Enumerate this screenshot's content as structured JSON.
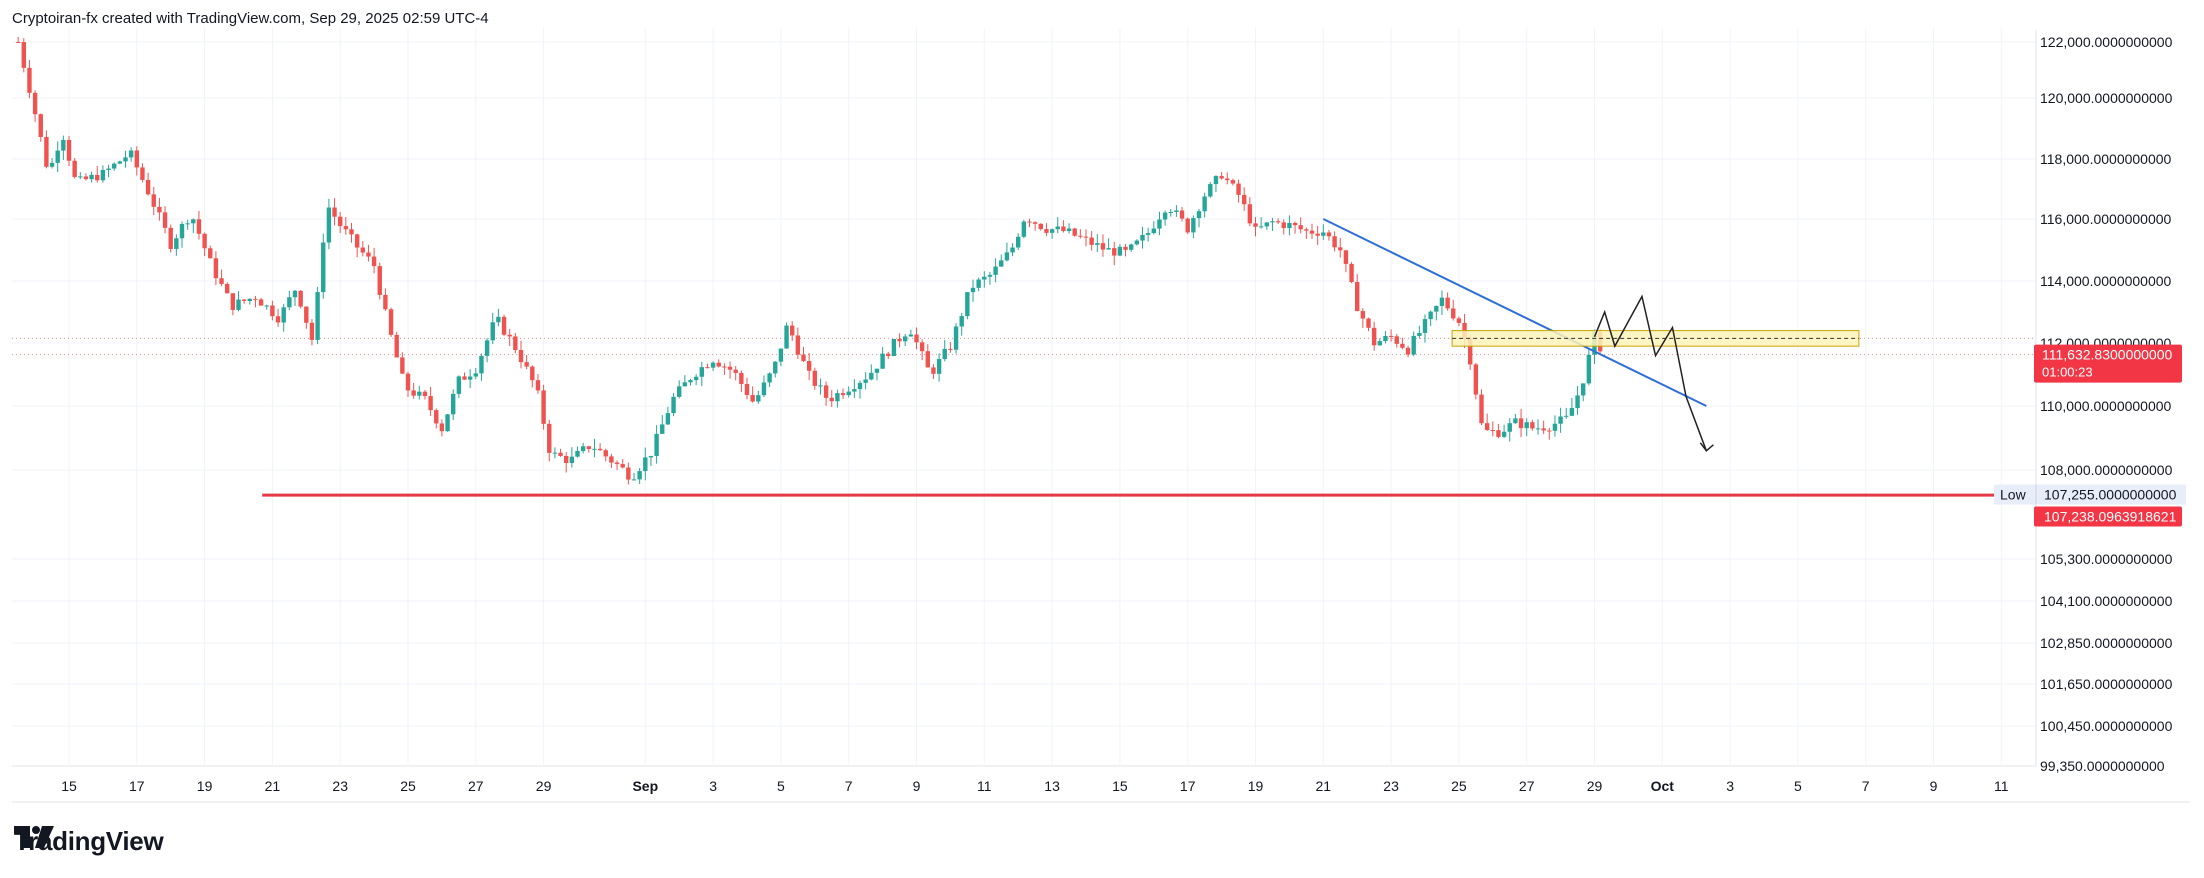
{
  "header": {
    "text": "Cryptoiran-fx created with TradingView.com, Sep 29, 2025 02:59 UTC-4"
  },
  "logo": {
    "text": "TradingView",
    "icon": "tradingview-logo-icon"
  },
  "colors": {
    "up": "#26a69a",
    "down": "#ef5350",
    "support_line": "#e53945",
    "trend_line": "#2f6ed8",
    "zone_fill": "#fdf3b8",
    "zone_border": "#c8a400",
    "price_label_bg": "#f23645",
    "low_label_bg": "#e8eef9",
    "grid": "#f0f3fa",
    "text": "#131722"
  },
  "price_axis": {
    "ticks": [
      {
        "label": "122,000.0000000000",
        "value": 122000
      },
      {
        "label": "120,000.0000000000",
        "value": 120000
      },
      {
        "label": "118,000.0000000000",
        "value": 118000
      },
      {
        "label": "116,000.0000000000",
        "value": 116000
      },
      {
        "label": "114,000.0000000000",
        "value": 114000
      },
      {
        "label": "112,000.0000000000",
        "value": 112000
      },
      {
        "label": "110,000.0000000000",
        "value": 110000
      },
      {
        "label": "108,000.0000000000",
        "value": 108000
      },
      {
        "label": "105,300.0000000000",
        "value": 105300
      },
      {
        "label": "104,100.0000000000",
        "value": 104100
      },
      {
        "label": "102,850.0000000000",
        "value": 102850
      },
      {
        "label": "101,650.0000000000",
        "value": 101650
      },
      {
        "label": "100,450.0000000000",
        "value": 100450
      },
      {
        "label": "99,350.0000000000",
        "value": 99350
      }
    ]
  },
  "time_axis": {
    "ticks": [
      {
        "label": "15",
        "day": 15
      },
      {
        "label": "17",
        "day": 17
      },
      {
        "label": "19",
        "day": 19
      },
      {
        "label": "21",
        "day": 21
      },
      {
        "label": "23",
        "day": 23
      },
      {
        "label": "25",
        "day": 25
      },
      {
        "label": "27",
        "day": 27
      },
      {
        "label": "29",
        "day": 29
      },
      {
        "label": "Sep",
        "day": 32,
        "bold": true
      },
      {
        "label": "3",
        "day": 34
      },
      {
        "label": "5",
        "day": 36
      },
      {
        "label": "7",
        "day": 38
      },
      {
        "label": "9",
        "day": 40
      },
      {
        "label": "11",
        "day": 42
      },
      {
        "label": "13",
        "day": 44
      },
      {
        "label": "15",
        "day": 46
      },
      {
        "label": "17",
        "day": 48
      },
      {
        "label": "19",
        "day": 50
      },
      {
        "label": "21",
        "day": 52
      },
      {
        "label": "23",
        "day": 54
      },
      {
        "label": "25",
        "day": 56
      },
      {
        "label": "27",
        "day": 58
      },
      {
        "label": "29",
        "day": 60
      },
      {
        "label": "Oct",
        "day": 62,
        "bold": true
      },
      {
        "label": "3",
        "day": 64
      },
      {
        "label": "5",
        "day": 66
      },
      {
        "label": "7",
        "day": 68
      },
      {
        "label": "9",
        "day": 70
      },
      {
        "label": "11",
        "day": 72
      }
    ]
  },
  "current_price": {
    "label": "111,632.8300000000",
    "countdown": "01:00:23",
    "value": 111632.83
  },
  "low_marker": {
    "label": "Low",
    "value_label": "107,255.0000000000",
    "value": 107255
  },
  "support_level": {
    "label": "107,238.0963918621",
    "value": 107238.1
  },
  "chart_data": {
    "type": "candlestick",
    "title": "",
    "xlabel": "",
    "ylabel": "",
    "x_units": "days since Aug 1, 2025 (Sep 1 = day 32)",
    "ylim": [
      99350,
      122500
    ],
    "grid": true,
    "series_anchor_closes": [
      [
        13.5,
        122000
      ],
      [
        14.0,
        119500
      ],
      [
        14.4,
        117500
      ],
      [
        14.8,
        118900
      ],
      [
        15.2,
        117200
      ],
      [
        16.0,
        117500
      ],
      [
        16.8,
        118200
      ],
      [
        17.3,
        117000
      ],
      [
        18.0,
        115200
      ],
      [
        18.6,
        116200
      ],
      [
        19.2,
        114500
      ],
      [
        19.8,
        113200
      ],
      [
        20.5,
        113500
      ],
      [
        21.2,
        112800
      ],
      [
        21.7,
        113800
      ],
      [
        22.2,
        112000
      ],
      [
        22.6,
        116500
      ],
      [
        23.0,
        115800
      ],
      [
        23.5,
        115100
      ],
      [
        24.0,
        114500
      ],
      [
        24.4,
        112600
      ],
      [
        24.9,
        110600
      ],
      [
        25.5,
        110200
      ],
      [
        26.0,
        109300
      ],
      [
        26.5,
        110800
      ],
      [
        27.0,
        111200
      ],
      [
        27.6,
        112800
      ],
      [
        28.2,
        111800
      ],
      [
        28.8,
        110500
      ],
      [
        29.2,
        108500
      ],
      [
        29.8,
        108300
      ],
      [
        30.4,
        108800
      ],
      [
        31.0,
        108300
      ],
      [
        31.6,
        107800
      ],
      [
        32.2,
        108600
      ],
      [
        32.8,
        110200
      ],
      [
        33.4,
        111000
      ],
      [
        34.0,
        111500
      ],
      [
        34.6,
        111100
      ],
      [
        35.2,
        110100
      ],
      [
        35.8,
        111200
      ],
      [
        36.2,
        112600
      ],
      [
        36.8,
        111000
      ],
      [
        37.4,
        110200
      ],
      [
        38.0,
        110600
      ],
      [
        38.6,
        111000
      ],
      [
        39.2,
        111800
      ],
      [
        39.8,
        112500
      ],
      [
        40.4,
        111000
      ],
      [
        41.0,
        111900
      ],
      [
        41.6,
        113800
      ],
      [
        42.2,
        114200
      ],
      [
        42.8,
        115000
      ],
      [
        43.2,
        116100
      ],
      [
        43.8,
        115700
      ],
      [
        44.4,
        115600
      ],
      [
        45.0,
        115300
      ],
      [
        45.6,
        115000
      ],
      [
        46.2,
        114900
      ],
      [
        46.8,
        115500
      ],
      [
        47.4,
        116500
      ],
      [
        48.0,
        115700
      ],
      [
        48.5,
        116800
      ],
      [
        49.0,
        117500
      ],
      [
        49.5,
        116800
      ],
      [
        50.0,
        115600
      ],
      [
        50.5,
        115900
      ],
      [
        51.0,
        115800
      ],
      [
        51.5,
        115600
      ],
      [
        52.0,
        115600
      ],
      [
        52.5,
        115000
      ],
      [
        53.0,
        113200
      ],
      [
        53.5,
        112000
      ],
      [
        54.0,
        112200
      ],
      [
        54.5,
        111800
      ],
      [
        55.0,
        112600
      ],
      [
        55.5,
        113400
      ],
      [
        56.0,
        112700
      ],
      [
        56.3,
        111700
      ],
      [
        56.7,
        109200
      ],
      [
        57.2,
        109200
      ],
      [
        57.7,
        109500
      ],
      [
        58.2,
        109300
      ],
      [
        58.7,
        109400
      ],
      [
        59.2,
        109600
      ],
      [
        59.6,
        110600
      ],
      [
        60.0,
        112200
      ],
      [
        60.3,
        111632
      ]
    ],
    "support_line": {
      "value": 107238.1,
      "x_start": 20.7,
      "x_end": 74.0
    },
    "trend_line": {
      "points": [
        [
          52.0,
          116000
        ],
        [
          63.3,
          110000
        ]
      ]
    },
    "resistance_zone": {
      "y_range": [
        111900,
        112400
      ],
      "x_range": [
        55.8,
        67.8
      ],
      "mid_dashed": 112150
    },
    "dotted_levels": [
      112150,
      111632
    ],
    "projection_path": [
      [
        60.0,
        112200
      ],
      [
        60.3,
        113000
      ],
      [
        60.6,
        111900
      ],
      [
        61.4,
        113500
      ],
      [
        61.8,
        111600
      ],
      [
        62.3,
        112500
      ],
      [
        62.7,
        110300
      ],
      [
        63.3,
        108600
      ]
    ],
    "low_value": 107255,
    "current_price": 111632.83
  }
}
